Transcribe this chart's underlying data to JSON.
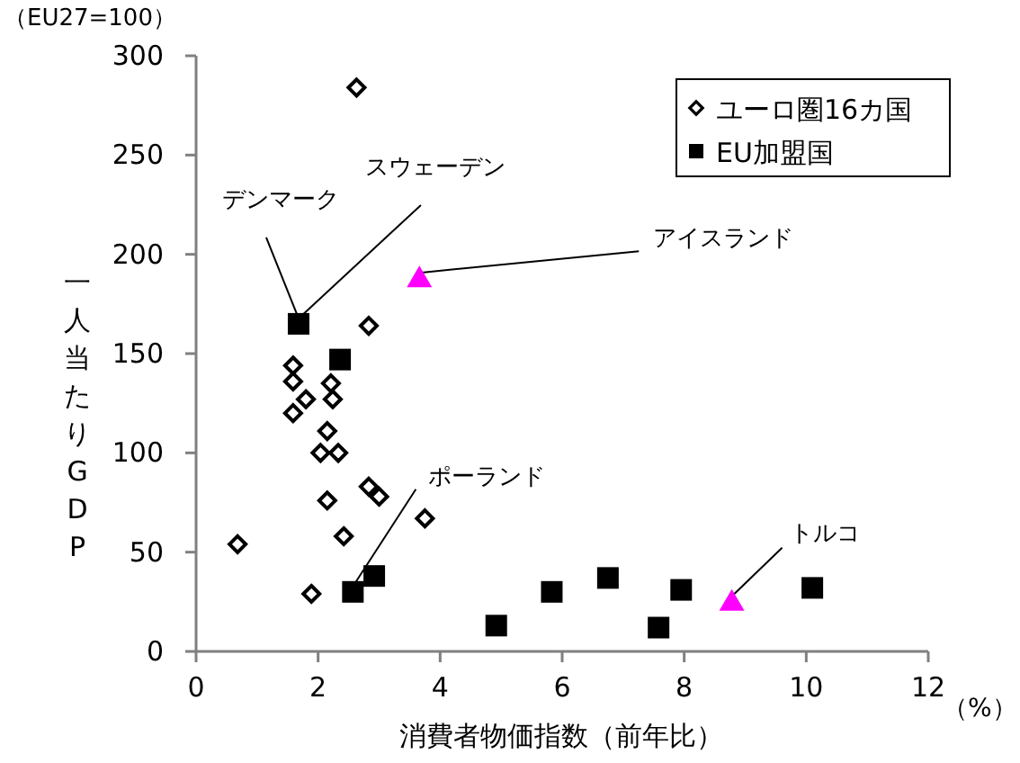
{
  "chart_data": {
    "type": "scatter",
    "subtitle": "（EU27=100）",
    "xlabel": "消費者物価指数（前年比）",
    "ylabel": "一人当たりGDP",
    "xlim": [
      0,
      12
    ],
    "xticks": [
      0,
      2,
      4,
      6,
      8,
      10,
      12
    ],
    "ylim": [
      0,
      300
    ],
    "yticks": [
      0,
      50,
      100,
      150,
      200,
      250,
      300
    ],
    "legend": "top right",
    "series": [
      {
        "name": "ユーロ圏16カ国",
        "color": "#000000",
        "marker": "diamond",
        "x": [
          2.63,
          2.83,
          1.59,
          1.59,
          1.8,
          1.59,
          2.21,
          2.24,
          2.15,
          2.04,
          2.33,
          2.15,
          2.83,
          3.0,
          3.75,
          2.42,
          0.68,
          1.89
        ],
        "values": [
          284,
          164,
          144,
          136,
          127,
          120,
          135,
          127,
          111,
          100,
          100,
          76,
          83,
          78,
          67,
          58,
          54,
          29
        ]
      },
      {
        "name": "EU加盟国",
        "color": "#000000",
        "marker": "square",
        "x": [
          1.68,
          2.36,
          2.57,
          2.92,
          4.92,
          5.83,
          6.75,
          7.58,
          7.95,
          10.1
        ],
        "values": [
          165,
          147,
          30,
          38,
          13,
          30,
          37,
          12,
          31,
          32
        ]
      },
      {
        "color": "#ff00ff",
        "marker": "triangle",
        "x": [
          3.66,
          8.78
        ],
        "values": [
          188,
          25
        ]
      }
    ],
    "annotations": [
      {
        "text": "デンマーク",
        "x": 1.68,
        "y": 165
      },
      {
        "text": "スウェーデン",
        "x": 1.68,
        "y": 165
      },
      {
        "text": "アイスランド",
        "x": 3.66,
        "y": 188
      },
      {
        "text": "ポーランド",
        "x": 2.57,
        "y": 30
      },
      {
        "text": "トルコ",
        "x": 8.78,
        "y": 25
      },
      "（%）"
    ]
  }
}
